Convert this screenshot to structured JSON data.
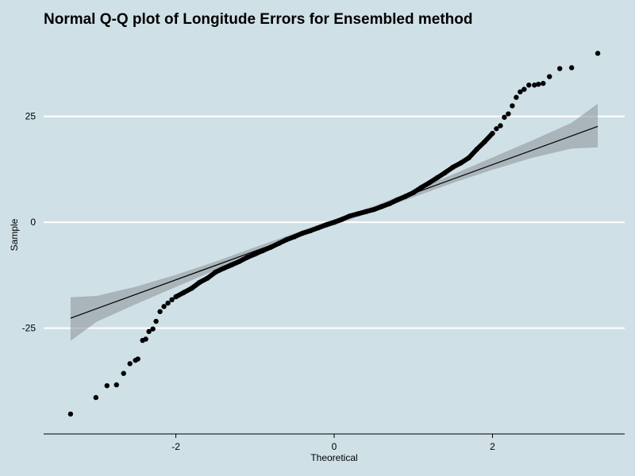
{
  "chart_data": {
    "type": "scatter",
    "title": "Normal Q-Q plot of Longitude Errors for Ensembled method",
    "xlabel": "Theoretical",
    "ylabel": "Sample",
    "xlim": [
      -3.67,
      3.67
    ],
    "ylim": [
      -50,
      45
    ],
    "x_ticks": [
      -2,
      0,
      2
    ],
    "x_tick_labels": [
      "-2",
      "0",
      "2"
    ],
    "y_ticks": [
      -25,
      0,
      25
    ],
    "y_tick_labels": [
      "-25",
      "0",
      "25"
    ],
    "grid": "horizontal major",
    "colors": {
      "background": "#d0e0e7",
      "gridline": "#ffffff",
      "points": "#000000",
      "band": "#8f989c",
      "line": "#000000"
    },
    "reference_line": {
      "slope": 6.8,
      "intercept": 0,
      "x_range": [
        -3.33,
        3.33
      ]
    },
    "confidence_band": {
      "x": [
        -3.33,
        -3.0,
        -2.5,
        -2.0,
        -1.5,
        -1.0,
        -0.5,
        0.0,
        0.5,
        1.0,
        1.5,
        2.0,
        2.5,
        3.0,
        3.33
      ],
      "lower": [
        -28.0,
        -23.5,
        -19.3,
        -15.3,
        -11.3,
        -7.5,
        -3.8,
        -0.7,
        2.6,
        5.9,
        9.3,
        12.4,
        15.2,
        17.4,
        17.7
      ],
      "upper": [
        -17.7,
        -17.4,
        -15.2,
        -12.4,
        -9.3,
        -5.9,
        -2.6,
        0.7,
        3.8,
        7.5,
        11.3,
        15.3,
        19.3,
        23.5,
        28.0
      ]
    },
    "series": [
      {
        "x": [
          -3.33,
          -3.01,
          -2.87,
          -2.75,
          -2.66,
          -2.58,
          -2.51,
          -2.48,
          -2.42,
          -2.38,
          -2.34,
          -2.29,
          -2.25,
          -2.2,
          -2.15,
          -2.1,
          -2.05,
          -2.0,
          -1.9,
          -1.8,
          -1.7,
          -1.6,
          -1.5,
          -1.4,
          -1.3,
          -1.2,
          -1.1,
          -1.0,
          -0.9,
          -0.8,
          -0.7,
          -0.6,
          -0.5,
          -0.4,
          -0.3,
          -0.2,
          -0.1,
          0.0,
          0.1,
          0.2,
          0.3,
          0.4,
          0.5,
          0.6,
          0.7,
          0.8,
          0.9,
          1.0,
          1.1,
          1.2,
          1.3,
          1.4,
          1.5,
          1.6,
          1.7,
          1.8,
          1.9,
          2.0,
          2.05,
          2.1,
          2.15,
          2.2,
          2.25,
          2.3,
          2.35,
          2.4,
          2.46,
          2.53,
          2.58,
          2.64,
          2.72,
          2.85,
          3.0,
          3.33
        ],
        "y": [
          -45.3,
          -41.4,
          -38.6,
          -38.4,
          -35.7,
          -33.4,
          -32.6,
          -32.3,
          -27.9,
          -27.6,
          -25.8,
          -25.2,
          -23.4,
          -21.1,
          -19.9,
          -19.1,
          -18.3,
          -17.6,
          -16.6,
          -15.6,
          -14.2,
          -13.2,
          -11.8,
          -10.9,
          -10.1,
          -9.3,
          -8.3,
          -7.5,
          -6.7,
          -5.9,
          -5.0,
          -4.1,
          -3.4,
          -2.6,
          -2.0,
          -1.3,
          -0.6,
          0.0,
          0.7,
          1.5,
          2.0,
          2.5,
          3.0,
          3.7,
          4.4,
          5.3,
          6.1,
          7.0,
          8.2,
          9.3,
          10.5,
          11.7,
          13.0,
          14.0,
          15.2,
          17.2,
          19.0,
          21.0,
          22.1,
          22.8,
          24.8,
          25.6,
          27.5,
          29.5,
          30.8,
          31.4,
          32.4,
          32.4,
          32.6,
          32.8,
          34.4,
          36.3,
          36.5,
          39.9
        ]
      }
    ]
  }
}
